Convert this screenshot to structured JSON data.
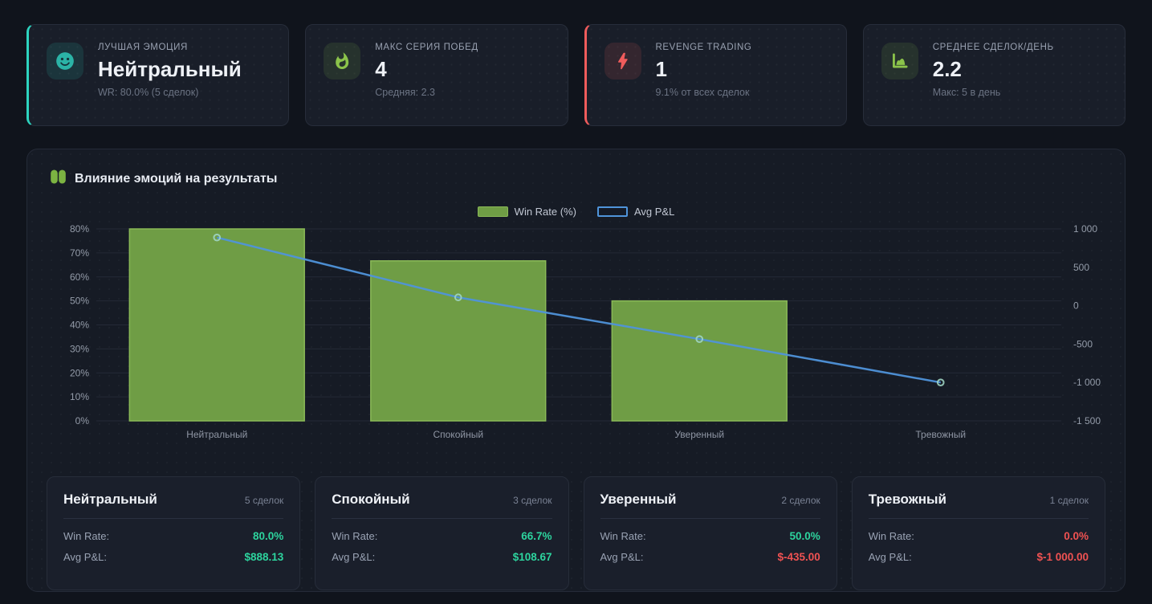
{
  "stats": {
    "cards": [
      {
        "label": "ЛУЧШАЯ ЭМОЦИЯ",
        "value": "Нейтральный",
        "sub": "WR: 80.0% (5 сделок)",
        "icon": "smiley-icon",
        "accent": "#2dd4bf"
      },
      {
        "label": "МАКС СЕРИЯ ПОБЕД",
        "value": "4",
        "sub": "Средняя: 2.3",
        "icon": "flame-icon",
        "accent": "#8bc34a"
      },
      {
        "label": "REVENGE TRADING",
        "value": "1",
        "sub": "9.1% от всех сделок",
        "icon": "bolt-icon",
        "accent": "#f05c5c"
      },
      {
        "label": "СРЕДНЕЕ СДЕЛОК/ДЕНЬ",
        "value": "2.2",
        "sub": "Макс: 5 в день",
        "icon": "area-chart-icon",
        "accent": "#8bc34a"
      }
    ]
  },
  "section": {
    "title": "Влияние эмоций на результаты",
    "icon": "brain-icon"
  },
  "legend": {
    "win_rate": "Win Rate (%)",
    "avg_pnl": "Avg P&L"
  },
  "chart_data": {
    "type": "bar",
    "subtype": "bar+line combo, dual y-axes",
    "title": "Влияние эмоций на результаты",
    "categories": [
      "Нейтральный",
      "Спокойный",
      "Уверенный",
      "Тревожный"
    ],
    "series": [
      {
        "name": "Win Rate (%)",
        "type": "bar",
        "axis": "left",
        "values": [
          80,
          66.7,
          50,
          0
        ],
        "color": "#6f9d45",
        "border_color": "#8ab957"
      },
      {
        "name": "Avg P&L",
        "type": "line",
        "axis": "right",
        "values": [
          888.13,
          108.67,
          -435,
          -1000
        ],
        "color": "#4f94da",
        "marker_color": "#9fd4c2"
      }
    ],
    "left_axis": {
      "min": 0,
      "max": 80,
      "ticks": [
        {
          "v": 0,
          "label": "0%"
        },
        {
          "v": 10,
          "label": "10%"
        },
        {
          "v": 20,
          "label": "20%"
        },
        {
          "v": 30,
          "label": "30%"
        },
        {
          "v": 40,
          "label": "40%"
        },
        {
          "v": 50,
          "label": "50%"
        },
        {
          "v": 60,
          "label": "60%"
        },
        {
          "v": 70,
          "label": "70%"
        },
        {
          "v": 80,
          "label": "80%"
        }
      ]
    },
    "right_axis": {
      "min": -1500,
      "max": 1000,
      "ticks": [
        {
          "v": 1000,
          "label": "1 000"
        },
        {
          "v": 500,
          "label": "500"
        },
        {
          "v": 0,
          "label": "0"
        },
        {
          "v": -500,
          "label": "-500"
        },
        {
          "v": -1000,
          "label": "-1 000"
        },
        {
          "v": -1500,
          "label": "-1 500"
        }
      ]
    },
    "grid": "horizontal only",
    "legend_position": "top center",
    "grid_color": "#242a36",
    "tick_color": "#949ca9"
  },
  "summary": {
    "labels": {
      "win_rate": "Win Rate:",
      "pnl": "Avg P&L:"
    },
    "cards": [
      {
        "title": "Нейтральный",
        "trades": "5 сделок",
        "win_rate": "80.0%",
        "win_rate_state": "positive",
        "pnl": "$888.13",
        "pnl_state": "positive"
      },
      {
        "title": "Спокойный",
        "trades": "3 сделок",
        "win_rate": "66.7%",
        "win_rate_state": "positive",
        "pnl": "$108.67",
        "pnl_state": "positive"
      },
      {
        "title": "Уверенный",
        "trades": "2 сделок",
        "win_rate": "50.0%",
        "win_rate_state": "positive",
        "pnl": "$-435.00",
        "pnl_state": "negative"
      },
      {
        "title": "Тревожный",
        "trades": "1 сделок",
        "win_rate": "0.0%",
        "win_rate_state": "negative",
        "pnl": "$-1 000.00",
        "pnl_state": "negative"
      }
    ]
  },
  "colors": {
    "page_bg": "#10141c",
    "card_bg": "#191e29",
    "panel_bg": "#161b25",
    "border": "#272d3a",
    "teal": "#2dd4bf",
    "lime": "#8bc34a",
    "red_accent": "#f05c5c",
    "positive": "#2dd49e",
    "negative": "#f05252",
    "bar_green": "#6f9d45",
    "line_blue": "#4f94da"
  }
}
